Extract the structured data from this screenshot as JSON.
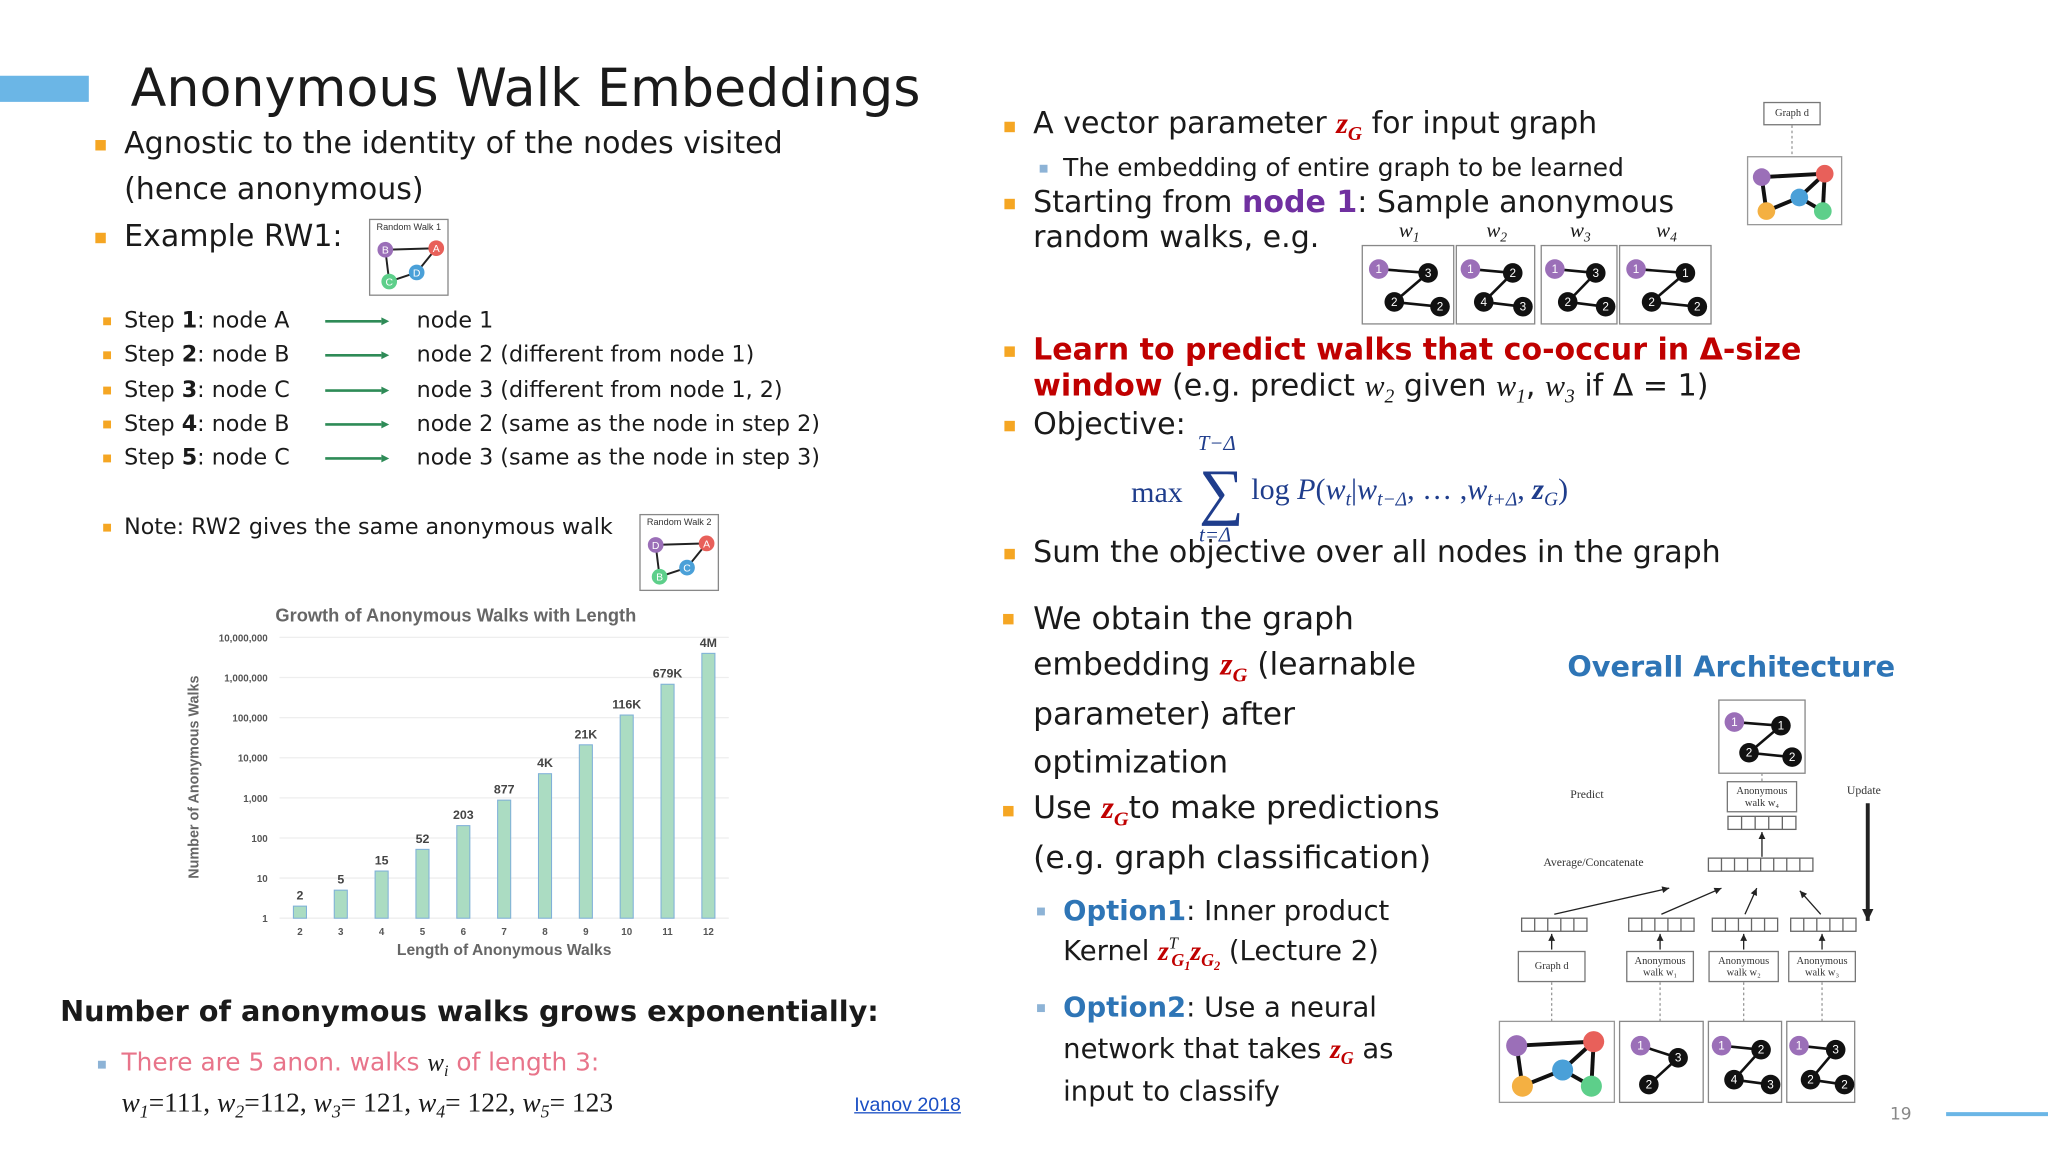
{
  "title": "Anonymous Walk Embeddings",
  "left_lines": [
    {
      "bullet": "main",
      "segments": [
        {
          "text": "Agnostic to the identity of the nodes visited",
          "style": "plain"
        }
      ]
    },
    {
      "bullet": "none",
      "segments": [
        {
          "text": "(hence anonymous)",
          "style": "plain"
        }
      ]
    },
    {
      "bullet": "main",
      "segments": [
        {
          "text": "Example RW1:",
          "style": "plain"
        }
      ]
    },
    {
      "bullet": "main",
      "segments": [
        {
          "text": "Step ",
          "style": "plain"
        },
        {
          "text": "1",
          "style": "bold"
        },
        {
          "text": ": node A",
          "style": "plain"
        }
      ]
    },
    {
      "bullet": "main",
      "segments": [
        {
          "text": "Step ",
          "style": "plain"
        },
        {
          "text": "2",
          "style": "bold"
        },
        {
          "text": ": node B",
          "style": "plain"
        }
      ]
    },
    {
      "bullet": "main",
      "segments": [
        {
          "text": "Step ",
          "style": "plain"
        },
        {
          "text": "3",
          "style": "bold"
        },
        {
          "text": ": node C",
          "style": "plain"
        }
      ]
    },
    {
      "bullet": "main",
      "segments": [
        {
          "text": "Step ",
          "style": "plain"
        },
        {
          "text": "4",
          "style": "bold"
        },
        {
          "text": ": node B",
          "style": "plain"
        }
      ]
    },
    {
      "bullet": "main",
      "segments": [
        {
          "text": "Step ",
          "style": "plain"
        },
        {
          "text": "5",
          "style": "bold"
        },
        {
          "text": ": node C",
          "style": "plain"
        }
      ]
    },
    {
      "bullet": "none",
      "segments": [
        {
          "text": "node 1",
          "style": "plain"
        }
      ]
    },
    {
      "bullet": "none",
      "segments": [
        {
          "text": "node 2 (different from node 1)",
          "style": "plain"
        }
      ]
    },
    {
      "bullet": "none",
      "segments": [
        {
          "text": "node 3 (different from node 1, 2)",
          "style": "plain"
        }
      ]
    },
    {
      "bullet": "none",
      "segments": [
        {
          "text": "node 2 (same as the node in step 2)",
          "style": "plain"
        }
      ]
    },
    {
      "bullet": "none",
      "segments": [
        {
          "text": "node 3 (same as the node in step 3)",
          "style": "plain"
        }
      ]
    },
    {
      "bullet": "main",
      "segments": [
        {
          "text": "Note: RW2 gives the same anonymous walk",
          "style": "plain"
        }
      ]
    },
    {
      "bullet": "none",
      "segments": [
        {
          "text": "Number of anonymous walks grows exponentially:",
          "style": "bold"
        }
      ]
    },
    {
      "bullet": "sub",
      "segments": [
        {
          "text": "There are 5 anon. walks ",
          "style": "pink"
        },
        {
          "text": "w",
          "style": "math"
        },
        {
          "text": "i",
          "style": "sub"
        },
        {
          "text": " of length 3:",
          "style": "pink"
        }
      ]
    },
    {
      "bullet": "none",
      "segments": [
        {
          "text": "w",
          "style": "math"
        },
        {
          "text": "1",
          "style": "sub"
        },
        {
          "text": "=111, ",
          "style": "serif"
        },
        {
          "text": "w",
          "style": "math"
        },
        {
          "text": "2",
          "style": "sub"
        },
        {
          "text": "=112, ",
          "style": "serif"
        },
        {
          "text": "w",
          "style": "math"
        },
        {
          "text": "3",
          "style": "sub"
        },
        {
          "text": "= 121, ",
          "style": "serif"
        },
        {
          "text": "w",
          "style": "math"
        },
        {
          "text": "4",
          "style": "sub"
        },
        {
          "text": "= 122, ",
          "style": "serif"
        },
        {
          "text": "w",
          "style": "math"
        },
        {
          "text": "5",
          "style": "sub"
        },
        {
          "text": "= 123",
          "style": "serif"
        }
      ]
    }
  ],
  "rw1": {
    "caption": "Random Walk 1",
    "labels": [
      "B",
      "A",
      "C",
      "D"
    ]
  },
  "rw2": {
    "caption": "Random Walk 2",
    "labels": [
      "D",
      "A",
      "B",
      "C"
    ]
  },
  "chart_data": {
    "type": "bar",
    "title": "Growth of Anonymous Walks with Length",
    "x_label": "Length of Anonymous Walks",
    "y_label": "Number of Anonymous Walks",
    "categories": [
      "2",
      "3",
      "4",
      "5",
      "6",
      "7",
      "8",
      "9",
      "10",
      "11",
      "12"
    ],
    "values": [
      2,
      5,
      15,
      52,
      203,
      877,
      4000,
      21000,
      116000,
      679000,
      4000000
    ],
    "value_labels": [
      "2",
      "5",
      "15",
      "52",
      "203",
      "877",
      "4K",
      "21K",
      "116K",
      "679K",
      "4M"
    ],
    "color": "#abdcc2",
    "yscale": "log",
    "ylim": [
      1,
      10000000
    ],
    "yticks": [
      1,
      10,
      100,
      {
        "value": 1000,
        "label": "1,000"
      },
      {
        "value": 10000,
        "label": "10,000"
      },
      {
        "value": 100000,
        "label": "100,000"
      },
      {
        "value": 1000000,
        "label": "1,000,000"
      },
      {
        "value": 10000000,
        "label": "10,000,000"
      }
    ],
    "grid": true
  },
  "citation": "Ivanov 2018",
  "right_lines": [
    {
      "bullet": "main",
      "segments": [
        {
          "text": "A vector parameter ",
          "style": "plain"
        },
        {
          "text": "z",
          "style": "z"
        },
        {
          "text": "G",
          "style": "zsub"
        },
        {
          "text": " for input graph",
          "style": "plain"
        }
      ]
    },
    {
      "bullet": "sub",
      "segments": [
        {
          "text": "The embedding of entire graph to be learned",
          "style": "plain"
        }
      ]
    },
    {
      "bullet": "main",
      "segments": [
        {
          "text": "Starting from ",
          "style": "plain"
        },
        {
          "text": "node 1",
          "style": "purple"
        },
        {
          "text": ": Sample anonymous",
          "style": "plain"
        }
      ]
    },
    {
      "bullet": "none",
      "segments": [
        {
          "text": "random walks, e.g.",
          "style": "plain"
        }
      ]
    },
    {
      "bullet": "main",
      "segments": [
        {
          "text": "Learn to predict walks that co-occur in Δ-size",
          "style": "red"
        }
      ]
    },
    {
      "bullet": "none",
      "segments": [
        {
          "text": "window",
          "style": "red"
        },
        {
          "text": " (e.g. predict ",
          "style": "plain"
        },
        {
          "text": "w",
          "style": "math"
        },
        {
          "text": "2",
          "style": "sub"
        },
        {
          "text": " given ",
          "style": "plain"
        },
        {
          "text": "w",
          "style": "math"
        },
        {
          "text": "1",
          "style": "sub"
        },
        {
          "text": ", ",
          "style": "plain"
        },
        {
          "text": "w",
          "style": "math"
        },
        {
          "text": "3",
          "style": "sub"
        },
        {
          "text": " if Δ = 1)",
          "style": "plain"
        }
      ]
    },
    {
      "bullet": "main",
      "segments": [
        {
          "text": "Objective:",
          "style": "plain"
        }
      ]
    },
    {
      "bullet": "main",
      "segments": [
        {
          "text": "Sum the objective over all nodes in the graph",
          "style": "plain"
        }
      ]
    },
    {
      "bullet": "main",
      "segments": [
        {
          "text": "We obtain the graph",
          "style": "plain"
        }
      ]
    },
    {
      "bullet": "none",
      "segments": [
        {
          "text": "embedding ",
          "style": "plain"
        },
        {
          "text": "z",
          "style": "z"
        },
        {
          "text": "G",
          "style": "zsub"
        },
        {
          "text": " (learnable",
          "style": "plain"
        }
      ]
    },
    {
      "bullet": "none",
      "segments": [
        {
          "text": "parameter) after",
          "style": "plain"
        }
      ]
    },
    {
      "bullet": "none",
      "segments": [
        {
          "text": "optimization",
          "style": "plain"
        }
      ]
    },
    {
      "bullet": "main",
      "segments": [
        {
          "text": "Use ",
          "style": "plain"
        },
        {
          "text": "z",
          "style": "z"
        },
        {
          "text": "G",
          "style": "zsub"
        },
        {
          "text": "to make predictions",
          "style": "plain"
        }
      ]
    },
    {
      "bullet": "none",
      "segments": [
        {
          "text": "(e.g. graph classification)",
          "style": "plain"
        }
      ]
    },
    {
      "bullet": "sub",
      "segments": [
        {
          "text": "Option1",
          "style": "blue"
        },
        {
          "text": ": Inner product",
          "style": "plain"
        }
      ]
    },
    {
      "bullet": "none",
      "segments": [
        {
          "text": "Kernel ",
          "style": "plain"
        },
        {
          "text": "z",
          "style": "z"
        },
        {
          "text": "T",
          "style": "sup"
        },
        {
          "text": "G",
          "style": "zsub"
        },
        {
          "text": "1",
          "style": "zsub2"
        },
        {
          "text": "z",
          "style": "z"
        },
        {
          "text": "G",
          "style": "zsub"
        },
        {
          "text": "2",
          "style": "zsub2"
        },
        {
          "text": " (Lecture 2)",
          "style": "plain"
        }
      ]
    },
    {
      "bullet": "sub",
      "segments": [
        {
          "text": "Option2",
          "style": "blue"
        },
        {
          "text": ": Use a neural",
          "style": "plain"
        }
      ]
    },
    {
      "bullet": "none",
      "segments": [
        {
          "text": "network that takes ",
          "style": "plain"
        },
        {
          "text": "z",
          "style": "z"
        },
        {
          "text": "G",
          "style": "zsub"
        },
        {
          "text": " as",
          "style": "plain"
        }
      ]
    },
    {
      "bullet": "none",
      "segments": [
        {
          "text": "input to classify",
          "style": "plain"
        }
      ]
    }
  ],
  "formula": {
    "max": "max",
    "sum": "∑",
    "upper": "T−Δ",
    "lower": "t=Δ",
    "segments": [
      {
        "text": "log ",
        "style": "serif"
      },
      {
        "text": "P",
        "style": "math"
      },
      {
        "text": "(",
        "style": "serif"
      },
      {
        "text": "w",
        "style": "math"
      },
      {
        "text": "t",
        "style": "sub"
      },
      {
        "text": "|",
        "style": "serif"
      },
      {
        "text": "w",
        "style": "math"
      },
      {
        "text": "t−Δ",
        "style": "sub"
      },
      {
        "text": ", … ,",
        "style": "serif"
      },
      {
        "text": "w",
        "style": "math"
      },
      {
        "text": "t+Δ",
        "style": "sub"
      },
      {
        "text": ", ",
        "style": "serif"
      },
      {
        "text": "z",
        "style": "zblue"
      },
      {
        "text": "G",
        "style": "sub"
      },
      {
        "text": ")",
        "style": "serif"
      }
    ]
  },
  "graph_d": {
    "caption": "Graph d",
    "colors": [
      "#9b6fb8",
      "#e8605a",
      "#4aa0d8",
      "#f4b042",
      "#5dcf8a"
    ]
  },
  "walk_labels": [
    {
      "w": "w",
      "i": "1"
    },
    {
      "w": "w",
      "i": "2"
    },
    {
      "w": "w",
      "i": "3"
    },
    {
      "w": "w",
      "i": "4"
    }
  ],
  "walks": [
    [
      "1",
      "3",
      "2",
      "2"
    ],
    [
      "1",
      "2",
      "4",
      "3"
    ],
    [
      "1",
      "3",
      "2",
      "2"
    ],
    [
      "1",
      "1",
      "2",
      "2"
    ]
  ],
  "architecture": {
    "heading": "Overall Architecture",
    "predict": "Predict",
    "update": "Update",
    "aggregate": "Average/Concatenate",
    "top_walk": [
      "1",
      "1",
      "2",
      "2"
    ],
    "top_caption": "Anonymous walk w₄",
    "captions": [
      "Graph d",
      "Anonymous walk w₁",
      "Anonymous walk w₂",
      "Anonymous walk w₃"
    ],
    "bottom_walks": [
      [
        "1",
        "3",
        "2"
      ],
      [
        "1",
        "2",
        "4",
        "3"
      ],
      [
        "1",
        "3",
        "2",
        "2"
      ]
    ]
  },
  "page_number": "19"
}
